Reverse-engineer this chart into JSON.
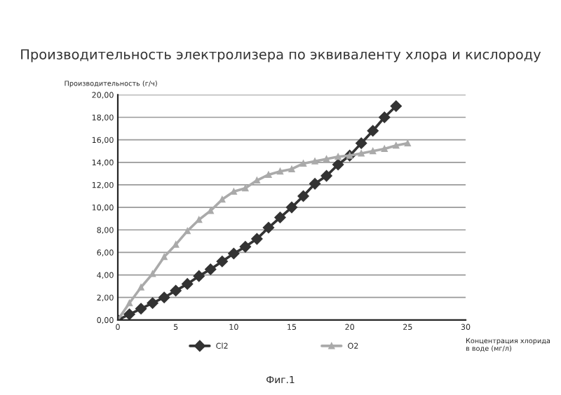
{
  "chart_data": {
    "type": "line",
    "title": "Производительность электролизера по эквиваленту хлора и кислороду",
    "ylabel": "Производительность (г/ч)",
    "xlabel": "Концентрация хлорида\nв воде (мг/л)",
    "annotations": [
      "Фиг.1"
    ],
    "xlim": [
      0,
      30
    ],
    "xticks": [
      0,
      5,
      10,
      15,
      20,
      25,
      30
    ],
    "ylim": [
      0,
      20
    ],
    "yticks": [
      {
        "value": 0,
        "label": "0,00"
      },
      {
        "value": 2,
        "label": "2,00"
      },
      {
        "value": 4,
        "label": "4,00"
      },
      {
        "value": 6,
        "label": "6,00"
      },
      {
        "value": 8,
        "label": "8,00"
      },
      {
        "value": 10,
        "label": "10,00"
      },
      {
        "value": 12,
        "label": "12,00"
      },
      {
        "value": 14,
        "label": "14,00"
      },
      {
        "value": 16,
        "label": "16,00"
      },
      {
        "value": 18,
        "label": "18,00"
      },
      {
        "value": 20,
        "label": "20,00"
      }
    ],
    "grid": "y",
    "legend": "bottom",
    "series": [
      {
        "name": "Cl2",
        "color": "#333333",
        "marker": "diamond",
        "x": [
          0,
          1,
          2,
          3,
          4,
          5,
          6,
          7,
          8,
          9,
          10,
          11,
          12,
          13,
          14,
          15,
          16,
          17,
          18,
          19,
          20,
          21,
          22,
          23,
          24
        ],
        "values": [
          0,
          0.5,
          1.0,
          1.5,
          2.0,
          2.6,
          3.2,
          3.9,
          4.5,
          5.2,
          5.9,
          6.5,
          7.2,
          8.2,
          9.1,
          10.0,
          11.0,
          12.1,
          12.8,
          13.8,
          14.6,
          15.7,
          16.8,
          18.0,
          19.0
        ]
      },
      {
        "name": "O2",
        "color": "#aaaaaa",
        "marker": "triangle",
        "x": [
          0,
          1,
          2,
          3,
          4,
          5,
          6,
          7,
          8,
          9,
          10,
          11,
          12,
          13,
          14,
          15,
          16,
          17,
          18,
          19,
          20,
          21,
          22,
          23,
          24,
          25
        ],
        "values": [
          0,
          1.5,
          2.9,
          4.1,
          5.6,
          6.7,
          7.9,
          8.9,
          9.7,
          10.7,
          11.4,
          11.7,
          12.4,
          12.9,
          13.2,
          13.4,
          13.9,
          14.1,
          14.3,
          14.5,
          14.6,
          14.8,
          15.0,
          15.2,
          15.5,
          15.7
        ]
      }
    ]
  }
}
